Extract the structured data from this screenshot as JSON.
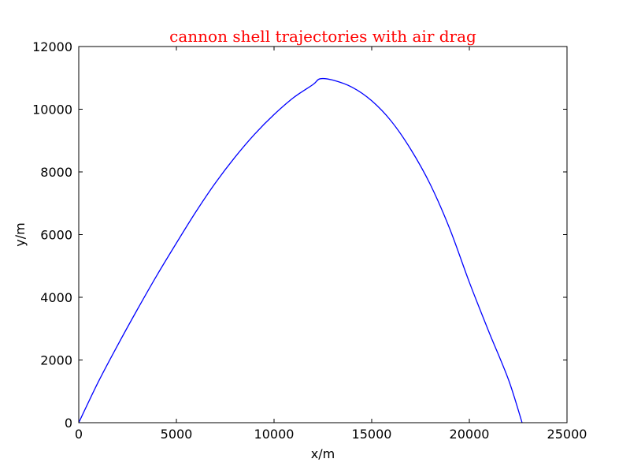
{
  "chart_data": {
    "type": "line",
    "title": "cannon shell trajectories with air drag",
    "title_color": "#ff0000",
    "xlabel": "x/m",
    "ylabel": "y/m",
    "xlim": [
      0,
      25000
    ],
    "ylim": [
      0,
      12000
    ],
    "xticks": [
      0,
      5000,
      10000,
      15000,
      20000,
      25000
    ],
    "yticks": [
      0,
      2000,
      4000,
      6000,
      8000,
      10000,
      12000
    ],
    "xtick_labels": [
      "0",
      "5000",
      "10000",
      "15000",
      "20000",
      "25000"
    ],
    "ytick_labels": [
      "0",
      "2000",
      "4000",
      "6000",
      "8000",
      "10000",
      "12000"
    ],
    "grid": false,
    "legend": "none",
    "series": [
      {
        "color": "#0000ff",
        "x": [
          0,
          1000,
          2000,
          3000,
          4000,
          5000,
          6000,
          7000,
          8000,
          9000,
          10000,
          11000,
          12000,
          12350,
          13000,
          14000,
          15000,
          16000,
          17000,
          18000,
          19000,
          20000,
          21000,
          22000,
          22700
        ],
        "y": [
          0,
          1300,
          2480,
          3610,
          4700,
          5730,
          6730,
          7650,
          8470,
          9200,
          9830,
          10370,
          10790,
          10970,
          10930,
          10700,
          10270,
          9620,
          8720,
          7600,
          6180,
          4480,
          2900,
          1380,
          0
        ]
      }
    ]
  }
}
